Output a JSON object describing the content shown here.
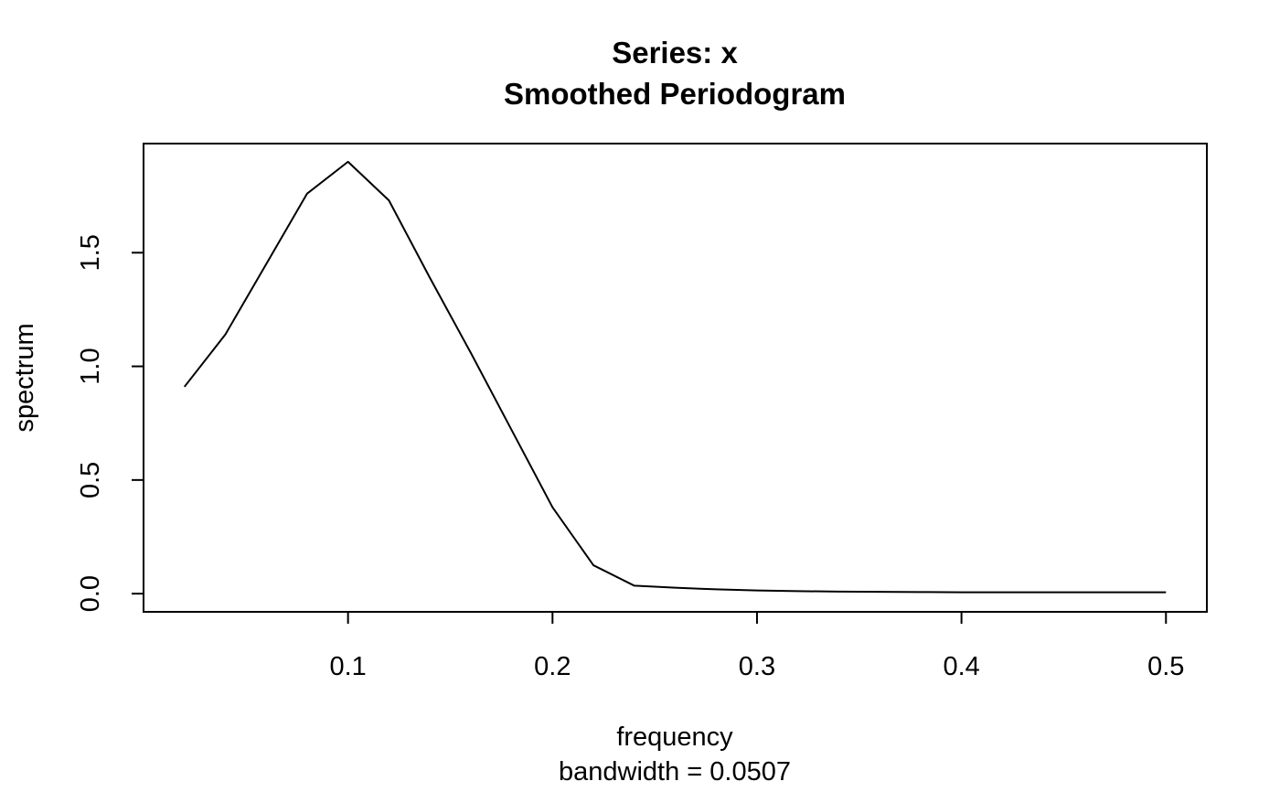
{
  "chart_data": {
    "type": "line",
    "title": "Series: x",
    "subtitle": "Smoothed Periodogram",
    "xlabel": "frequency",
    "xsublabel": "bandwidth = 0.0507",
    "ylabel": "spectrum",
    "xlim": [
      0.0,
      0.52
    ],
    "ylim": [
      -0.08,
      1.98
    ],
    "x_ticks": [
      0.1,
      0.2,
      0.3,
      0.4,
      0.5
    ],
    "x_tick_labels": [
      "0.1",
      "0.2",
      "0.3",
      "0.4",
      "0.5"
    ],
    "y_ticks": [
      0.0,
      0.5,
      1.0,
      1.5
    ],
    "y_tick_labels": [
      "0.0",
      "0.5",
      "1.0",
      "1.5"
    ],
    "grid": false,
    "legend": "none",
    "series": [
      {
        "x": [
          0.02,
          0.04,
          0.06,
          0.08,
          0.1,
          0.12,
          0.14,
          0.16,
          0.18,
          0.2,
          0.22,
          0.24,
          0.26,
          0.28,
          0.3,
          0.32,
          0.34,
          0.36,
          0.38,
          0.4,
          0.42,
          0.44,
          0.46,
          0.48,
          0.5
        ],
        "y": [
          0.91,
          1.14,
          1.45,
          1.76,
          1.9,
          1.73,
          1.39,
          1.06,
          0.72,
          0.38,
          0.125,
          0.035,
          0.026,
          0.019,
          0.014,
          0.011,
          0.009,
          0.008,
          0.007,
          0.006,
          0.006,
          0.006,
          0.006,
          0.006,
          0.006
        ]
      }
    ]
  }
}
